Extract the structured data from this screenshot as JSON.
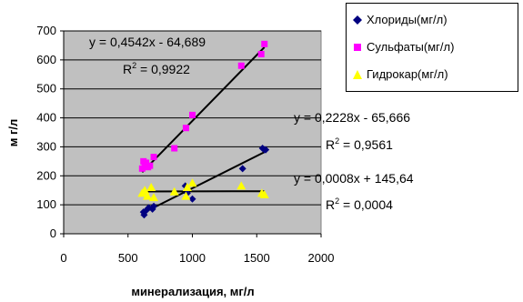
{
  "chart_data": {
    "type": "scatter",
    "title": "",
    "xlabel": "минерализация, мг/л",
    "ylabel": "м г/л",
    "xlim": [
      0,
      2000
    ],
    "ylim": [
      0,
      700
    ],
    "x_ticks": [
      0,
      500,
      1000,
      1500,
      2000
    ],
    "y_ticks": [
      0,
      100,
      200,
      300,
      400,
      500,
      600,
      700
    ],
    "grid": "horizontal",
    "plot_background": "#c0c0c0",
    "legend_position": "top-right",
    "series": [
      {
        "name": "Хлориды(мг/л)",
        "color": "#000080",
        "marker": "diamond",
        "points": [
          [
            620,
            75
          ],
          [
            625,
            65
          ],
          [
            640,
            80
          ],
          [
            660,
            90
          ],
          [
            690,
            85
          ],
          [
            700,
            95
          ],
          [
            945,
            165
          ],
          [
            960,
            140
          ],
          [
            1000,
            120
          ],
          [
            1390,
            225
          ],
          [
            1545,
            295
          ],
          [
            1560,
            290
          ],
          [
            1570,
            290
          ]
        ],
        "trendline": {
          "slope": 0.2228,
          "intercept": -65.666,
          "x_range": [
            620,
            1570
          ]
        }
      },
      {
        "name": "Сульфаты(мг/л)",
        "color": "#ff00ff",
        "marker": "square",
        "points": [
          [
            610,
            225
          ],
          [
            620,
            250
          ],
          [
            630,
            235
          ],
          [
            640,
            245
          ],
          [
            655,
            230
          ],
          [
            670,
            235
          ],
          [
            700,
            265
          ],
          [
            860,
            295
          ],
          [
            950,
            365
          ],
          [
            1000,
            410
          ],
          [
            1380,
            580
          ],
          [
            1535,
            620
          ],
          [
            1560,
            655
          ]
        ],
        "trendline": {
          "slope": 0.4542,
          "intercept": -64.689,
          "x_range": [
            610,
            1560
          ]
        }
      },
      {
        "name": "Гидрокар(мг/л)",
        "color": "#ffff00",
        "marker": "triangle",
        "points": [
          [
            610,
            140
          ],
          [
            630,
            150
          ],
          [
            650,
            130
          ],
          [
            680,
            160
          ],
          [
            700,
            125
          ],
          [
            860,
            145
          ],
          [
            950,
            130
          ],
          [
            960,
            160
          ],
          [
            1000,
            175
          ],
          [
            1380,
            165
          ],
          [
            1540,
            140
          ],
          [
            1560,
            135
          ]
        ],
        "trendline": {
          "slope": 0.0008,
          "intercept": 145.64,
          "x_range": [
            610,
            1560
          ]
        }
      }
    ],
    "annotations": [
      {
        "equation": "y = 0,4542x - 64,689",
        "r2_label": "R",
        "r2_sup": "2",
        "r2_value": " = 0,9922"
      },
      {
        "equation": "y = 0,2228x - 65,666",
        "r2_label": "R",
        "r2_sup": "2",
        "r2_value": " = 0,9561"
      },
      {
        "equation": "y = 0,0008x + 145,64",
        "r2_label": "R",
        "r2_sup": "2",
        "r2_value": " = 0,0004"
      }
    ]
  }
}
